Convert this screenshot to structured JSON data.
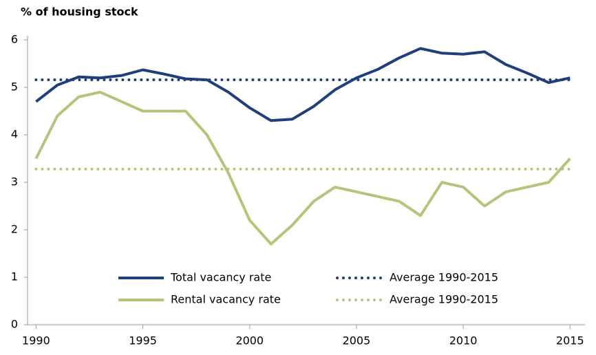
{
  "chart_data": {
    "type": "line",
    "title": "% of housing stock",
    "x": [
      1990,
      1991,
      1992,
      1993,
      1994,
      1995,
      1996,
      1997,
      1998,
      1999,
      2000,
      2001,
      2002,
      2003,
      2004,
      2005,
      2006,
      2007,
      2008,
      2009,
      2010,
      2011,
      2012,
      2013,
      2014,
      2015
    ],
    "series": [
      {
        "name": "Total vacancy rate",
        "color": "#1f3f7a",
        "style": "solid",
        "values": [
          4.7,
          5.05,
          5.22,
          5.2,
          5.25,
          5.37,
          5.28,
          5.18,
          5.16,
          4.9,
          4.57,
          4.3,
          4.33,
          4.6,
          4.95,
          5.2,
          5.38,
          5.62,
          5.82,
          5.72,
          5.7,
          5.75,
          5.48,
          5.3,
          5.1,
          5.2
        ]
      },
      {
        "name": "Rental vacancy rate",
        "color": "#b5c47a",
        "style": "solid",
        "values": [
          3.5,
          4.4,
          4.8,
          4.9,
          4.7,
          4.5,
          4.5,
          4.5,
          4.0,
          3.2,
          2.2,
          1.7,
          2.1,
          2.6,
          2.9,
          2.8,
          2.7,
          2.6,
          2.3,
          3.0,
          2.9,
          2.5,
          2.8,
          2.9,
          3.0,
          3.5
        ]
      },
      {
        "name": "Average 1990-2015",
        "color": "#1f3f7a",
        "style": "dotted",
        "values": [
          5.16,
          5.16,
          5.16,
          5.16,
          5.16,
          5.16,
          5.16,
          5.16,
          5.16,
          5.16,
          5.16,
          5.16,
          5.16,
          5.16,
          5.16,
          5.16,
          5.16,
          5.16,
          5.16,
          5.16,
          5.16,
          5.16,
          5.16,
          5.16,
          5.16,
          5.16
        ]
      },
      {
        "name": "Average 1990-2015",
        "color": "#b5c47a",
        "style": "dotted",
        "values": [
          3.28,
          3.28,
          3.28,
          3.28,
          3.28,
          3.28,
          3.28,
          3.28,
          3.28,
          3.28,
          3.28,
          3.28,
          3.28,
          3.28,
          3.28,
          3.28,
          3.28,
          3.28,
          3.28,
          3.28,
          3.28,
          3.28,
          3.28,
          3.28,
          3.28,
          3.28
        ]
      }
    ],
    "xlim": [
      1989.6,
      2015.7
    ],
    "xticks": [
      1990,
      1995,
      2000,
      2005,
      2010,
      2015
    ],
    "ylim": [
      0,
      6
    ],
    "yticks": [
      0,
      1,
      2,
      3,
      4,
      5,
      6
    ],
    "grid": false
  }
}
